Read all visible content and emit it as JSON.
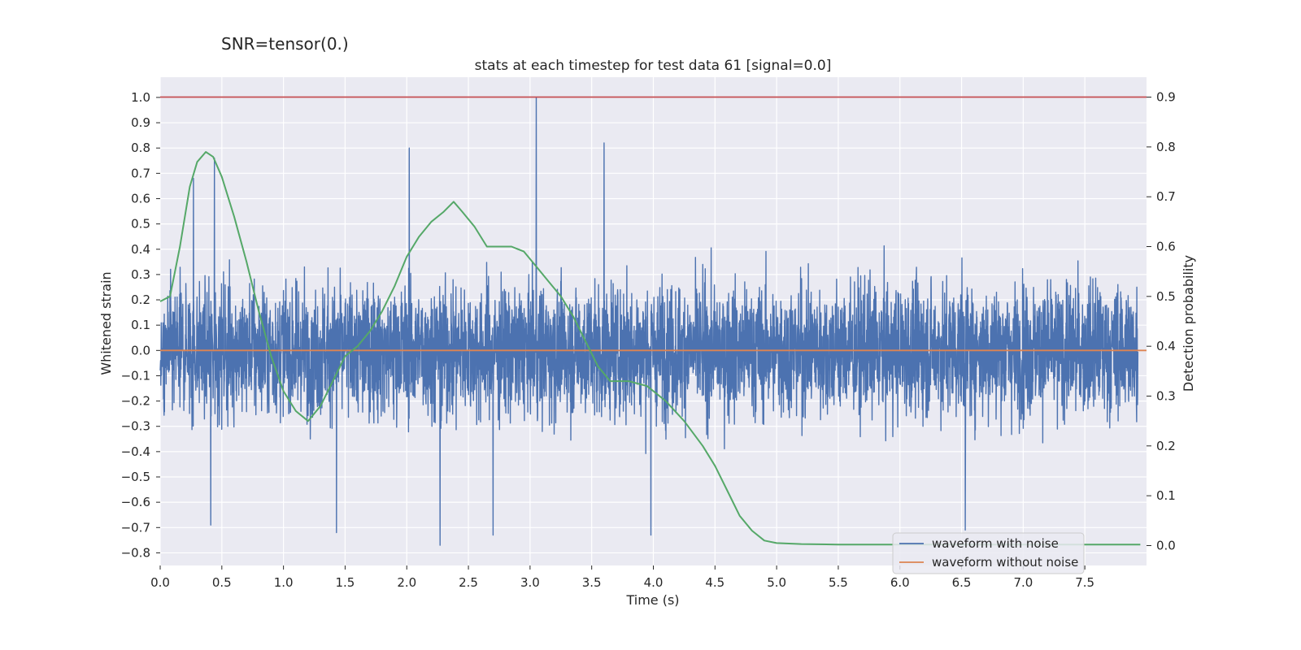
{
  "suptitle": "SNR=tensor(0.)",
  "chart_data": {
    "type": "line",
    "title": "stats at each timestep for test data 61 [signal=0.0]",
    "xlabel": "Time (s)",
    "ylabel_left": "Whitened strain",
    "ylabel_right": "Detection probability",
    "xlim": [
      0.0,
      8.0
    ],
    "ylim_left": [
      -0.85,
      1.08
    ],
    "ylim_right": [
      -0.04,
      0.94
    ],
    "x_ticks": [
      0.0,
      0.5,
      1.0,
      1.5,
      2.0,
      2.5,
      3.0,
      3.5,
      4.0,
      4.5,
      5.0,
      5.5,
      6.0,
      6.5,
      7.0,
      7.5
    ],
    "x_tick_labels": [
      "0.0",
      "0.5",
      "1.0",
      "1.5",
      "2.0",
      "2.5",
      "3.0",
      "3.5",
      "4.0",
      "4.5",
      "5.0",
      "5.5",
      "6.0",
      "6.5",
      "7.0",
      "7.5"
    ],
    "y_left_ticks": [
      1.0,
      0.9,
      0.8,
      0.7,
      0.6,
      0.5,
      0.4,
      0.3,
      0.2,
      0.1,
      0.0,
      -0.1,
      -0.2,
      -0.3,
      -0.4,
      -0.5,
      -0.6,
      -0.7,
      -0.8
    ],
    "y_left_tick_labels": [
      "1.0",
      "0.9",
      "0.8",
      "0.7",
      "0.6",
      "0.5",
      "0.4",
      "0.3",
      "0.2",
      "0.1",
      "0.0",
      "−0.1",
      "−0.2",
      "−0.3",
      "−0.4",
      "−0.5",
      "−0.6",
      "−0.7",
      "−0.8"
    ],
    "y_right_ticks": [
      0.9,
      0.8,
      0.7,
      0.6,
      0.5,
      0.4,
      0.3,
      0.2,
      0.1,
      0.0
    ],
    "y_right_tick_labels": [
      "0.9",
      "0.8",
      "0.7",
      "0.6",
      "0.5",
      "0.4",
      "0.3",
      "0.2",
      "0.1",
      "0.0"
    ],
    "grid": true,
    "legend_position": "bottom-right",
    "series": [
      {
        "name": "waveform with noise",
        "axis": "left",
        "color": "#4c72b0",
        "description": "dense whitened noise, roughly ±0.4 with spikes up to 1.0 near t=3.05 and down to about -0.77",
        "envelope": {
          "typical_range": [
            -0.4,
            0.45
          ]
        },
        "spikes": [
          {
            "x": 0.44,
            "y": 0.76
          },
          {
            "x": 2.02,
            "y": 0.8
          },
          {
            "x": 3.05,
            "y": 1.0
          },
          {
            "x": 3.6,
            "y": 0.82
          },
          {
            "x": 2.27,
            "y": -0.77
          },
          {
            "x": 1.43,
            "y": -0.72
          },
          {
            "x": 2.7,
            "y": -0.73
          },
          {
            "x": 3.98,
            "y": -0.73
          },
          {
            "x": 6.53,
            "y": -0.71
          },
          {
            "x": 0.41,
            "y": -0.69
          },
          {
            "x": 0.27,
            "y": 0.68
          }
        ]
      },
      {
        "name": "waveform without noise",
        "axis": "left",
        "color": "#dd8452",
        "x": [
          0.0,
          8.0
        ],
        "y": [
          0.0,
          0.0
        ]
      },
      {
        "axis": "right",
        "color": "#55a868",
        "x": [
          0.0,
          0.08,
          0.16,
          0.24,
          0.3,
          0.37,
          0.43,
          0.5,
          0.6,
          0.7,
          0.8,
          0.9,
          1.0,
          1.1,
          1.2,
          1.3,
          1.4,
          1.5,
          1.6,
          1.7,
          1.8,
          1.9,
          2.0,
          2.1,
          2.2,
          2.3,
          2.38,
          2.45,
          2.55,
          2.65,
          2.75,
          2.85,
          2.95,
          3.05,
          3.15,
          3.25,
          3.35,
          3.45,
          3.55,
          3.65,
          3.8,
          3.95,
          4.1,
          4.25,
          4.4,
          4.5,
          4.6,
          4.7,
          4.8,
          4.9,
          5.0,
          5.2,
          5.5,
          6.0,
          6.5,
          7.0,
          7.5,
          7.95
        ],
        "y": [
          0.49,
          0.5,
          0.6,
          0.72,
          0.77,
          0.79,
          0.78,
          0.74,
          0.66,
          0.57,
          0.47,
          0.38,
          0.31,
          0.27,
          0.25,
          0.28,
          0.33,
          0.38,
          0.4,
          0.43,
          0.47,
          0.52,
          0.58,
          0.62,
          0.65,
          0.67,
          0.69,
          0.67,
          0.64,
          0.6,
          0.6,
          0.6,
          0.59,
          0.56,
          0.53,
          0.5,
          0.46,
          0.41,
          0.36,
          0.33,
          0.33,
          0.32,
          0.29,
          0.25,
          0.2,
          0.16,
          0.11,
          0.06,
          0.03,
          0.01,
          0.005,
          0.003,
          0.002,
          0.002,
          0.002,
          0.002,
          0.002,
          0.002
        ]
      },
      {
        "axis": "right",
        "color": "#c44e52",
        "x": [
          0.0,
          8.0
        ],
        "y": [
          0.9,
          0.9
        ]
      }
    ]
  }
}
